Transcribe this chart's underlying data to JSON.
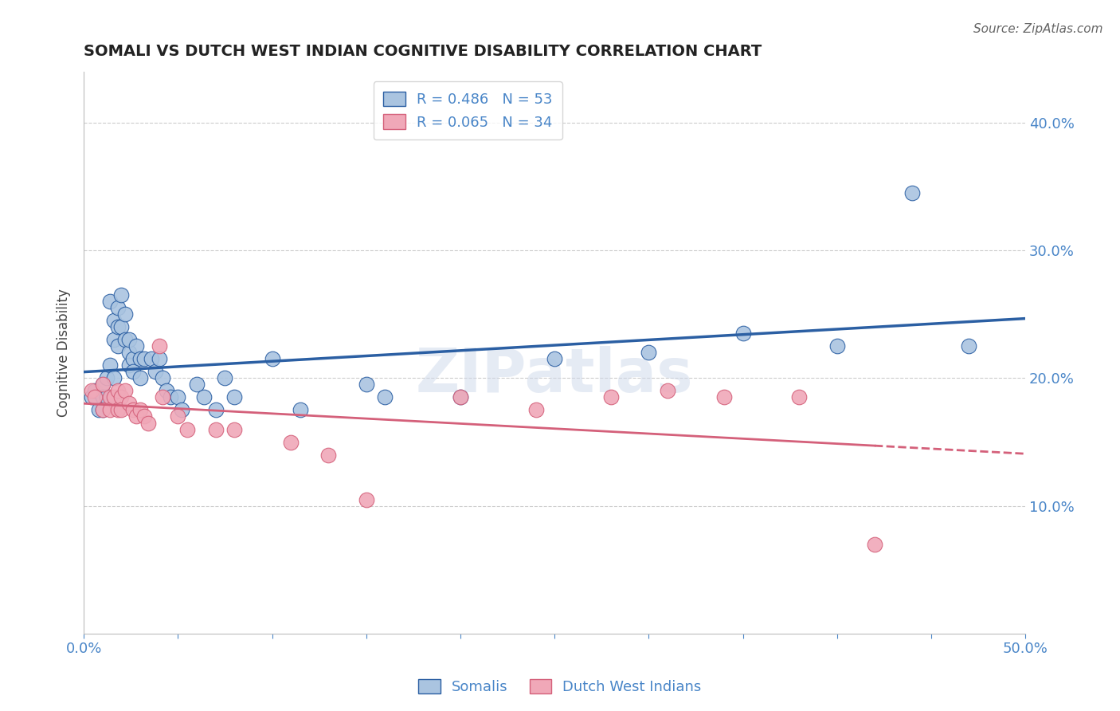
{
  "title": "SOMALI VS DUTCH WEST INDIAN COGNITIVE DISABILITY CORRELATION CHART",
  "source_text": "Source: ZipAtlas.com",
  "ylabel": "Cognitive Disability",
  "xlim": [
    0.0,
    0.5
  ],
  "ylim": [
    0.0,
    0.44
  ],
  "xticks": [
    0.0,
    0.05,
    0.1,
    0.15,
    0.2,
    0.25,
    0.3,
    0.35,
    0.4,
    0.45,
    0.5
  ],
  "yticks": [
    0.0,
    0.1,
    0.2,
    0.3,
    0.4
  ],
  "axis_color": "#4a86c8",
  "watermark": "ZIPatlas",
  "somali_x": [
    0.004,
    0.006,
    0.008,
    0.01,
    0.01,
    0.01,
    0.012,
    0.012,
    0.014,
    0.014,
    0.016,
    0.016,
    0.016,
    0.018,
    0.018,
    0.018,
    0.02,
    0.02,
    0.022,
    0.022,
    0.024,
    0.024,
    0.024,
    0.026,
    0.026,
    0.028,
    0.03,
    0.03,
    0.032,
    0.036,
    0.038,
    0.04,
    0.042,
    0.044,
    0.046,
    0.05,
    0.052,
    0.06,
    0.064,
    0.07,
    0.075,
    0.08,
    0.1,
    0.115,
    0.15,
    0.16,
    0.2,
    0.25,
    0.3,
    0.35,
    0.4,
    0.44,
    0.47
  ],
  "somali_y": [
    0.185,
    0.19,
    0.175,
    0.195,
    0.185,
    0.175,
    0.2,
    0.185,
    0.26,
    0.21,
    0.245,
    0.23,
    0.2,
    0.255,
    0.24,
    0.225,
    0.265,
    0.24,
    0.25,
    0.23,
    0.22,
    0.21,
    0.23,
    0.215,
    0.205,
    0.225,
    0.215,
    0.2,
    0.215,
    0.215,
    0.205,
    0.215,
    0.2,
    0.19,
    0.185,
    0.185,
    0.175,
    0.195,
    0.185,
    0.175,
    0.2,
    0.185,
    0.215,
    0.175,
    0.195,
    0.185,
    0.185,
    0.215,
    0.22,
    0.235,
    0.225,
    0.345,
    0.225
  ],
  "dutch_x": [
    0.004,
    0.006,
    0.01,
    0.01,
    0.014,
    0.014,
    0.016,
    0.018,
    0.018,
    0.02,
    0.02,
    0.022,
    0.024,
    0.026,
    0.028,
    0.03,
    0.032,
    0.034,
    0.04,
    0.042,
    0.05,
    0.055,
    0.07,
    0.08,
    0.11,
    0.13,
    0.15,
    0.2,
    0.24,
    0.28,
    0.31,
    0.34,
    0.38,
    0.42
  ],
  "dutch_y": [
    0.19,
    0.185,
    0.195,
    0.175,
    0.185,
    0.175,
    0.185,
    0.19,
    0.175,
    0.185,
    0.175,
    0.19,
    0.18,
    0.175,
    0.17,
    0.175,
    0.17,
    0.165,
    0.225,
    0.185,
    0.17,
    0.16,
    0.16,
    0.16,
    0.15,
    0.14,
    0.105,
    0.185,
    0.175,
    0.185,
    0.19,
    0.185,
    0.185,
    0.07
  ],
  "line_color_somali": "#2b5fa3",
  "line_color_dutch": "#d4607a",
  "dot_color_somali": "#aac4e0",
  "dot_color_dutch": "#f0a8b8",
  "legend_label1": "R = 0.486   N = 53",
  "legend_label2": "R = 0.065   N = 34"
}
